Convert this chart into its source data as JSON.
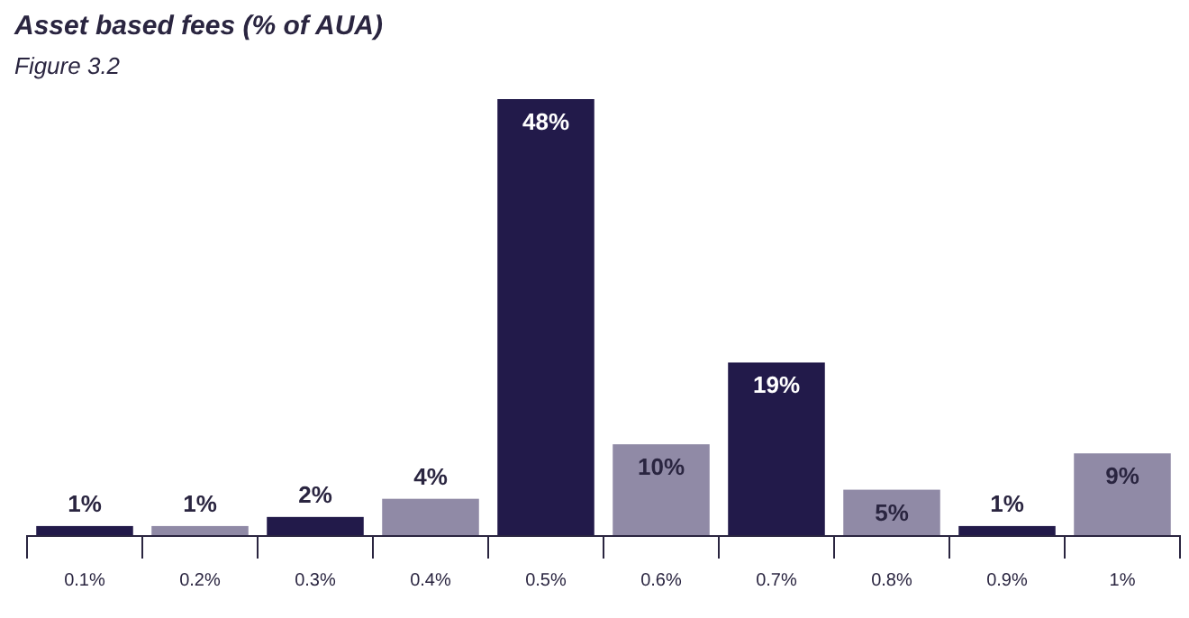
{
  "chart_data": {
    "type": "bar",
    "title": "Asset based fees (% of AUA)",
    "subtitle": "Figure 3.2",
    "categories": [
      "0.1%",
      "0.2%",
      "0.3%",
      "0.4%",
      "0.5%",
      "0.6%",
      "0.7%",
      "0.8%",
      "0.9%",
      "1%"
    ],
    "values": [
      1,
      1,
      2,
      4,
      48,
      10,
      19,
      5,
      1,
      9
    ],
    "colors": [
      "#221a4a",
      "#908aa6",
      "#221a4a",
      "#908aa6",
      "#221a4a",
      "#908aa6",
      "#221a4a",
      "#908aa6",
      "#221a4a",
      "#908aa6"
    ],
    "value_labels": [
      "1%",
      "1%",
      "2%",
      "4%",
      "48%",
      "10%",
      "19%",
      "5%",
      "1%",
      "9%"
    ]
  }
}
